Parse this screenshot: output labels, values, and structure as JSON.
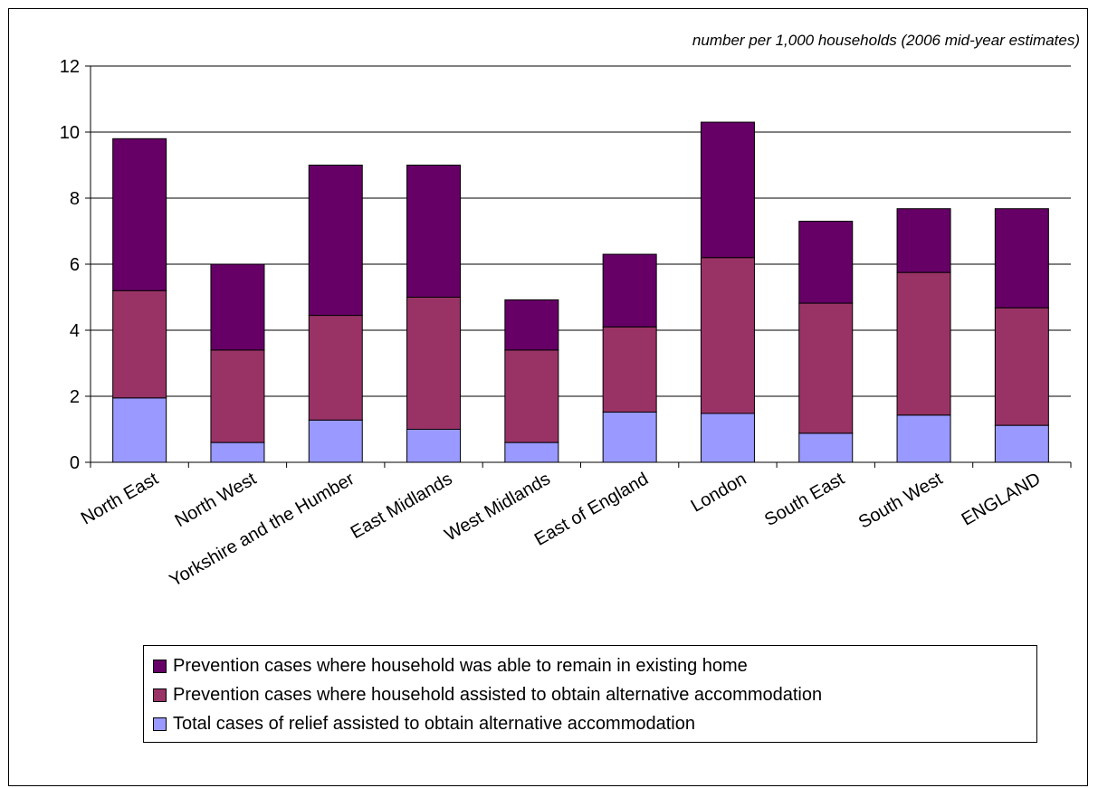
{
  "chart_data": {
    "type": "bar",
    "stacked": true,
    "subtitle": "number per 1,000 households (2006 mid-year estimates)",
    "title": "",
    "xlabel": "",
    "ylabel": "",
    "ylim": [
      0,
      12
    ],
    "yticks": [
      "0",
      "2",
      "4",
      "6",
      "8",
      "10",
      "12"
    ],
    "grid": true,
    "legend_position": "bottom",
    "categories": [
      "North East",
      "North West",
      "Yorkshire and the Humber",
      "East Midlands",
      "West Midlands",
      "East of England",
      "London",
      "South East",
      "South West",
      "ENGLAND"
    ],
    "series": [
      {
        "name": "Total cases of relief assisted to obtain alternative accommodation",
        "color": "#9999ff",
        "values": [
          1.95,
          0.6,
          1.28,
          1.0,
          0.6,
          1.52,
          1.48,
          0.88,
          1.43,
          1.12
        ]
      },
      {
        "name": "Prevention cases where household assisted to obtain alternative accommodation",
        "color": "#993366",
        "values": [
          3.25,
          2.8,
          3.17,
          4.0,
          2.8,
          2.58,
          4.72,
          3.94,
          4.32,
          3.56
        ]
      },
      {
        "name": "Prevention cases where household was able to remain in existing home",
        "color": "#660066",
        "values": [
          4.6,
          2.6,
          4.55,
          4.0,
          1.52,
          2.2,
          4.1,
          2.48,
          1.93,
          3.0
        ]
      }
    ]
  },
  "legend": {
    "items": [
      {
        "label": "Prevention cases where household was able to remain in existing home",
        "color": "#660066"
      },
      {
        "label": "Prevention cases where household assisted to obtain alternative accommodation",
        "color": "#993366"
      },
      {
        "label": "Total cases of relief assisted to obtain alternative accommodation",
        "color": "#9999ff"
      }
    ]
  }
}
